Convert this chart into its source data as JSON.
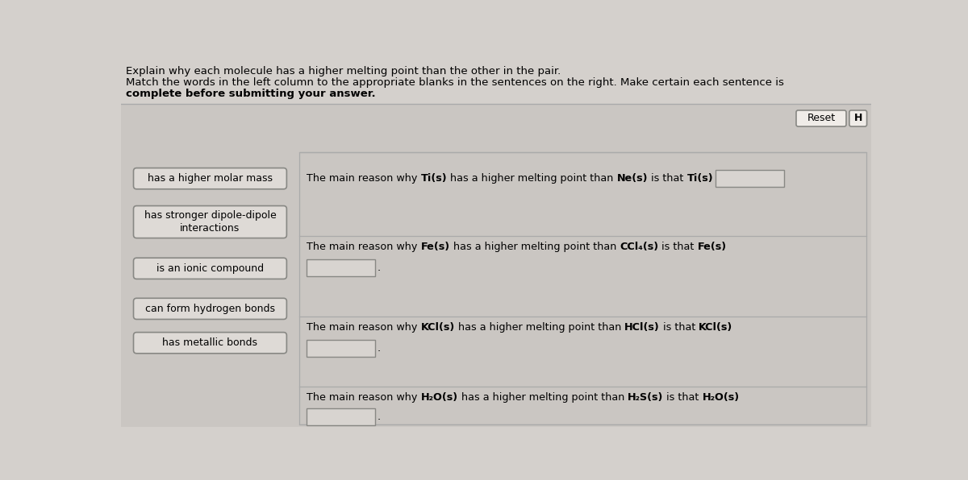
{
  "title_line1": "Explain why each molecule has a higher melting point than the other in the pair.",
  "title_line2_normal": "Match the words in the left column to the appropriate blanks in the sentences on the right. Make certain each sentence is",
  "title_line3_bold": "complete before submitting your answer.",
  "bg_color": "#d4d0cc",
  "panel_bg": "#cac6c2",
  "box_bg": "#dedad6",
  "box_bg_answer": "#d8d4d0",
  "box_border": "#888884",
  "left_labels": [
    "has a higher molar mass",
    "has stronger dipole-dipole\ninteractions",
    "is an ionic compound",
    "can form hydrogen bonds",
    "has metallic bonds"
  ],
  "reset_label": "Reset",
  "h_label": "H",
  "sentences": [
    {
      "pre": "The main reason why ",
      "b1": "Ti(s)",
      "mid1": " has a higher melting point than ",
      "b2": "Ne(s)",
      "mid2": " is that ",
      "b3": "Ti(s)",
      "answer_inline": true
    },
    {
      "pre": "The main reason why ",
      "b1": "Fe(s)",
      "mid1": " has a higher melting point than ",
      "b2": "CCl₄(s)",
      "mid2": " is that ",
      "b3": "Fe(s)",
      "answer_inline": false
    },
    {
      "pre": "The main reason why ",
      "b1": "KCl(s)",
      "mid1": " has a higher melting point than ",
      "b2": "HCl(s)",
      "mid2": " is that ",
      "b3": "KCl(s)",
      "answer_inline": false
    },
    {
      "pre": "The main reason why ",
      "b1": "H₂O(s)",
      "mid1": " has a higher melting point than ",
      "b2": "H₂S(s)",
      "mid2": " is that ",
      "b3": "H₂O(s)",
      "answer_inline": false
    }
  ]
}
